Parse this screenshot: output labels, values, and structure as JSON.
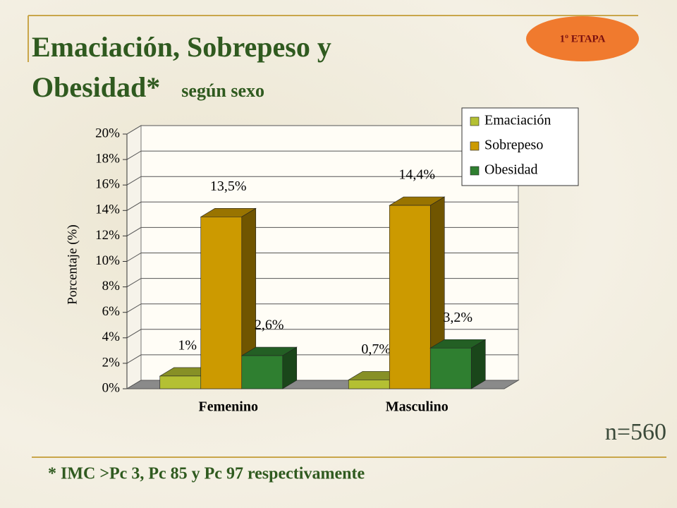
{
  "slide": {
    "title": "Emaciación, Sobrepeso y Obesidad*",
    "subtitle": "según sexo",
    "badge": "1º ETAPA",
    "sample": "n=560",
    "footnote": "* IMC >Pc 3, Pc 85 y Pc 97 respectivamente"
  },
  "chart_data": {
    "type": "bar3d",
    "y_label": "Porcentaje (%)",
    "categories": [
      "Femenino",
      "Masculino"
    ],
    "series": [
      {
        "name": "Emaciación",
        "color": "#b4c033",
        "values": [
          1,
          0.7
        ],
        "value_labels": [
          "1%",
          "0,7%"
        ]
      },
      {
        "name": "Sobrepeso",
        "color": "#cc9a00",
        "values": [
          13.5,
          14.4
        ],
        "value_labels": [
          "13,5%",
          "14,4%"
        ]
      },
      {
        "name": "Obesidad",
        "color": "#2f7f30",
        "values": [
          2.6,
          3.2
        ],
        "value_labels": [
          "2,6%",
          "3,2%"
        ]
      }
    ],
    "ylim": [
      0,
      20
    ],
    "yticks": [
      {
        "value": 0,
        "label": "0%"
      },
      {
        "value": 2,
        "label": "2%"
      },
      {
        "value": 4,
        "label": "4%"
      },
      {
        "value": 6,
        "label": "6%"
      },
      {
        "value": 8,
        "label": "8%"
      },
      {
        "value": 10,
        "label": "10%"
      },
      {
        "value": 12,
        "label": "12%"
      },
      {
        "value": 14,
        "label": "14%"
      },
      {
        "value": 16,
        "label": "16%"
      },
      {
        "value": 18,
        "label": "18%"
      },
      {
        "value": 20,
        "label": "20%"
      }
    ],
    "grid": true,
    "legend": "upper right"
  }
}
